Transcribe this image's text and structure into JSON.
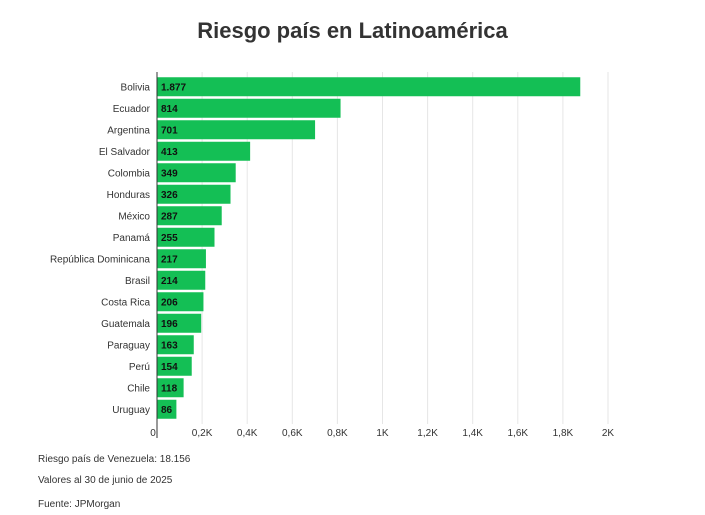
{
  "title": "Riesgo país en Latinoamérica",
  "chart_data": {
    "type": "bar",
    "orientation": "horizontal",
    "categories": [
      "Bolivia",
      "Ecuador",
      "Argentina",
      "El Salvador",
      "Colombia",
      "Honduras",
      "México",
      "Panamá",
      "República Dominicana",
      "Brasil",
      "Costa Rica",
      "Guatemala",
      "Paraguay",
      "Perú",
      "Chile",
      "Uruguay"
    ],
    "values": [
      1877,
      814,
      701,
      413,
      349,
      326,
      287,
      255,
      217,
      214,
      206,
      196,
      163,
      154,
      118,
      86
    ],
    "value_labels": [
      "1.877",
      "814",
      "701",
      "413",
      "349",
      "326",
      "287",
      "255",
      "217",
      "214",
      "206",
      "196",
      "163",
      "154",
      "118",
      "86"
    ],
    "xlim": [
      0,
      2000
    ],
    "xticks": [
      0,
      200,
      400,
      600,
      800,
      1000,
      1200,
      1400,
      1600,
      1800,
      2000
    ],
    "xtick_labels": [
      "0",
      "0,2K",
      "0,4K",
      "0,6K",
      "0,8K",
      "1K",
      "1,2K",
      "1,4K",
      "1,6K",
      "1,8K",
      "2K"
    ],
    "grid": true,
    "bar_color": "#14bf55"
  },
  "notes": {
    "venezuela": "Riesgo país de Venezuela: 18.156",
    "date": "Valores al 30 de junio de 2025",
    "source": "Fuente: JPMorgan"
  }
}
